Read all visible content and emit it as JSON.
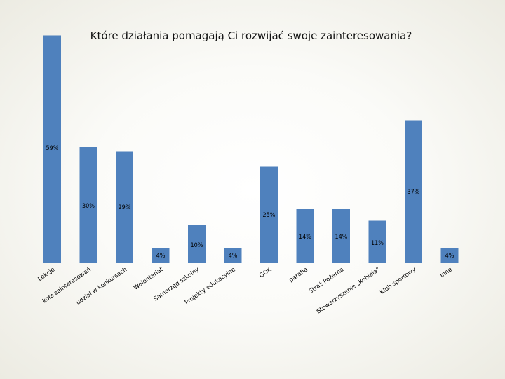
{
  "chart_data": {
    "type": "bar",
    "title": "Które działania pomagają Ci rozwijać swoje zainteresowania?",
    "categories": [
      "Lekcje",
      "koła zainteresowań",
      "udział w konkursach",
      "Wolontariat",
      "Samorząd szkolny",
      "Projekty edukacyjne",
      "GOK",
      "parafia",
      "Straż Pożarna",
      "Stowarzyszenie „Kobiela\"",
      "Klub sportowy",
      "Inne"
    ],
    "values": [
      59,
      30,
      29,
      4,
      10,
      4,
      25,
      14,
      14,
      11,
      37,
      4
    ],
    "value_labels": [
      "59%",
      "30%",
      "29%",
      "4%",
      "10%",
      "4%",
      "25%",
      "14%",
      "14%",
      "11%",
      "37%",
      "4%"
    ],
    "bar_color": "#4f81bd",
    "grid": false,
    "legend": "none"
  }
}
